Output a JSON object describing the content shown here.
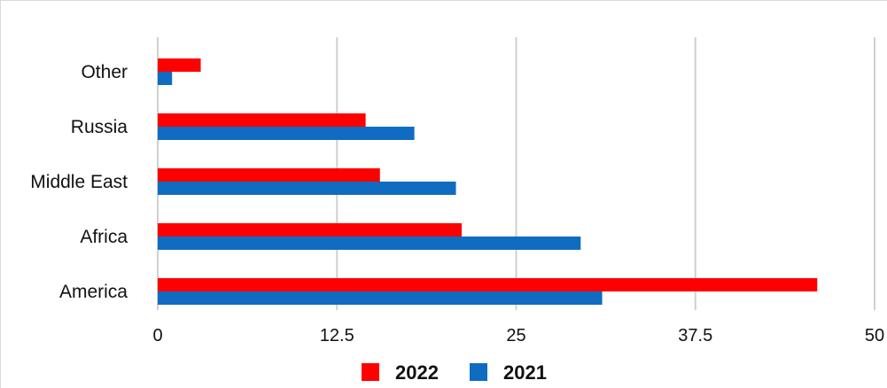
{
  "chart_data": {
    "type": "bar",
    "orientation": "horizontal",
    "categories": [
      "Other",
      "Russia",
      "Middle East",
      "Africa",
      "America"
    ],
    "series": [
      {
        "name": "2022",
        "color": "#ff0000",
        "values": [
          3,
          14.5,
          15.5,
          21.2,
          46
        ]
      },
      {
        "name": "2021",
        "color": "#0f6cc0",
        "values": [
          1,
          17.9,
          20.8,
          29.5,
          31
        ]
      }
    ],
    "xlim": [
      0,
      50
    ],
    "xticks": [
      "0",
      "12.5",
      "25",
      "37.5",
      "50"
    ],
    "title": "",
    "xlabel": "",
    "ylabel": "",
    "grid": "vertical",
    "legend_position": "bottom"
  }
}
